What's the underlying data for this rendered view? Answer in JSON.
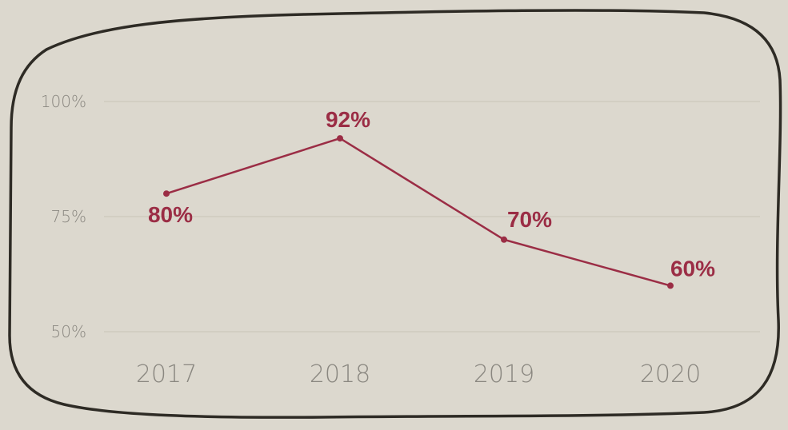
{
  "chart_data": {
    "type": "line",
    "categories": [
      "2017",
      "2018",
      "2019",
      "2020"
    ],
    "series": [
      {
        "values": [
          80,
          92,
          70,
          60
        ]
      }
    ],
    "data_labels": [
      "80%",
      "92%",
      "70%",
      "60%"
    ],
    "y_ticks": [
      {
        "value": 100,
        "label": "100%"
      },
      {
        "value": 75,
        "label": "75%"
      },
      {
        "value": 50,
        "label": "50%"
      }
    ],
    "ylim": [
      50,
      100
    ],
    "grid": true,
    "legend": "none",
    "title": "",
    "xlabel": "",
    "ylabel": ""
  },
  "colors": {
    "background": "#dcd8ce",
    "frame": "#2e2b25",
    "series": "#9b2d45",
    "grid": "#cbc7bc",
    "tick": "#8a8780"
  }
}
